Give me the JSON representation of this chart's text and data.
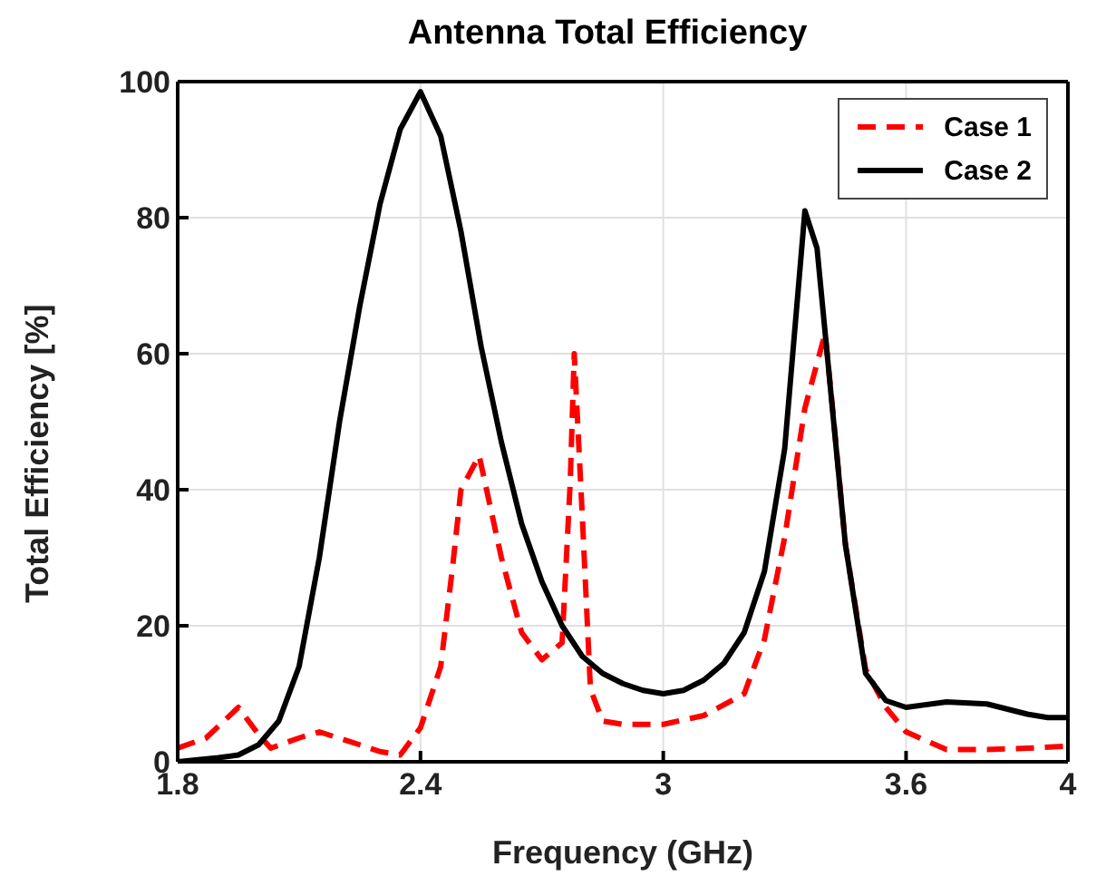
{
  "chart_data": {
    "type": "line",
    "title": "Antenna Total Efficiency",
    "xlabel": "Frequency (GHz)",
    "ylabel": "Total Efficiency [%]",
    "xlim": [
      1.8,
      4
    ],
    "xticks": [
      1.8,
      2.4,
      3,
      3.6,
      4
    ],
    "ylim": [
      0,
      100
    ],
    "yticks": [
      0,
      20,
      40,
      60,
      80,
      100
    ],
    "grid": true,
    "legend": "top right",
    "marker": "none",
    "series": [
      {
        "name": "Case 1",
        "color": "#ff0000",
        "line_style": "dashed",
        "x": [
          1.8,
          1.87,
          1.95,
          2.0,
          2.03,
          2.1,
          2.15,
          2.25,
          2.3,
          2.35,
          2.4,
          2.45,
          2.48,
          2.5,
          2.545,
          2.6,
          2.65,
          2.7,
          2.75,
          2.77,
          2.78,
          2.8,
          2.82,
          2.85,
          2.9,
          3.0,
          3.1,
          3.2,
          3.25,
          3.3,
          3.35,
          3.4,
          3.42,
          3.45,
          3.5,
          3.55,
          3.6,
          3.7,
          3.8,
          3.9,
          4.0
        ],
        "values": [
          2,
          3.5,
          8,
          4,
          2,
          3.5,
          4.4,
          2.5,
          1.5,
          1,
          5,
          14,
          29,
          40,
          45,
          30,
          19,
          15,
          17.5,
          41,
          60,
          36,
          10.7,
          6,
          5.5,
          5.5,
          6.8,
          10,
          18,
          33,
          52,
          63,
          51,
          32,
          13.6,
          8,
          4.4,
          1.8,
          1.8,
          2,
          2.3
        ]
      },
      {
        "name": "Case 2",
        "color": "#000000",
        "line_style": "solid",
        "x": [
          1.8,
          1.85,
          1.9,
          1.95,
          2.0,
          2.05,
          2.1,
          2.15,
          2.2,
          2.25,
          2.3,
          2.35,
          2.4,
          2.45,
          2.5,
          2.55,
          2.6,
          2.65,
          2.7,
          2.75,
          2.8,
          2.85,
          2.9,
          2.95,
          3.0,
          3.05,
          3.1,
          3.15,
          3.2,
          3.25,
          3.3,
          3.35,
          3.38,
          3.45,
          3.5,
          3.55,
          3.6,
          3.7,
          3.8,
          3.9,
          3.95,
          4.0
        ],
        "values": [
          0,
          0.3,
          0.6,
          1,
          2.5,
          6,
          14,
          30,
          50,
          67,
          82,
          93,
          98.5,
          92,
          78,
          61,
          47,
          35,
          26.5,
          20,
          15.5,
          13,
          11.5,
          10.5,
          10,
          10.5,
          12,
          14.5,
          19,
          28,
          46,
          81,
          75.5,
          32,
          13,
          9,
          8,
          8.8,
          8.5,
          7,
          6.5,
          6.5
        ]
      }
    ]
  }
}
